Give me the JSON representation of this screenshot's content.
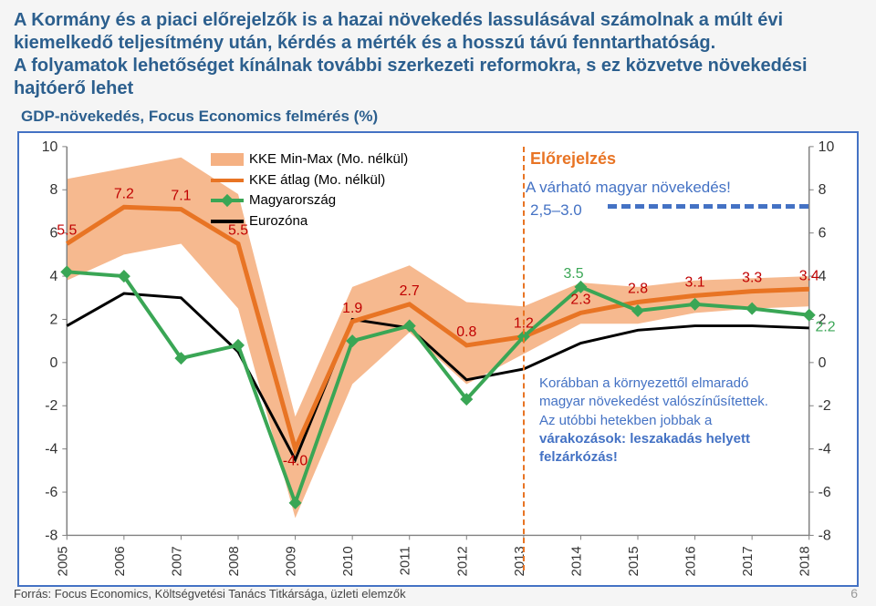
{
  "title_line1": "A Kormány és a piaci előrejelzők is a hazai növekedés lassulásával számolnak a múlt évi kiemelkedő teljesítmény után, kérdés a mérték és a hosszú távú fenntarthatóság.",
  "title_line2": "A folyamatok lehetőséget kínálnak további szerkezeti reformokra, s ez közvetve növekedési hajtóerő lehet",
  "subtitle": "GDP-növekedés, Focus Economics felmérés (%)",
  "footer": "Forrás: Focus Economics, Költségvetési Tanács Titkársága, üzleti elemzők",
  "page_num": "6",
  "forecast_label": "Előrejelzés",
  "note_expected": "A várható magyar növekedés!",
  "note_range": "2,5–3.0",
  "note_box_a": "Korábban a környezettől elmaradó magyar növekedést valószínűsítettek. Az utóbbi hetekben jobbak a ",
  "note_box_b": "várakozások: leszakadás helyett felzárkózás!",
  "legend": {
    "l1": "KKE Min-Max (Mo. nélkül)",
    "l2": "KKE átlag (Mo. nélkül)",
    "l3": "Magyarország",
    "l4": "Eurozóna"
  },
  "chart": {
    "years": [
      "2005",
      "2006",
      "2007",
      "2008",
      "2009",
      "2010",
      "2011",
      "2012",
      "2013",
      "2014",
      "2015",
      "2016",
      "2017",
      "2018"
    ],
    "ylim": [
      -8,
      10
    ],
    "ytick_step": 2,
    "band_max": [
      8.5,
      9.0,
      9.5,
      7.8,
      -2.5,
      3.5,
      4.5,
      2.8,
      2.6,
      3.7,
      3.5,
      3.8,
      3.9,
      4.0
    ],
    "band_min": [
      3.8,
      5.0,
      5.5,
      2.5,
      -7.2,
      -1.0,
      1.4,
      -1.0,
      0.4,
      1.8,
      1.8,
      2.3,
      2.5,
      2.6
    ],
    "kke_avg": [
      5.5,
      7.2,
      7.1,
      5.5,
      -4.0,
      1.9,
      2.7,
      0.8,
      1.2,
      2.3,
      2.8,
      3.1,
      3.3,
      3.4
    ],
    "hungary": [
      4.2,
      4.0,
      0.2,
      0.8,
      -6.5,
      1.0,
      1.7,
      -1.7,
      1.2,
      3.5,
      2.4,
      2.7,
      2.5,
      2.2
    ],
    "eurozone": [
      1.7,
      3.2,
      3.0,
      0.5,
      -4.5,
      2.0,
      1.6,
      -0.8,
      -0.3,
      0.9,
      1.5,
      1.7,
      1.7,
      1.6
    ],
    "labels_kke": {
      "2005": "5.5",
      "2006": "7.2",
      "2007": "7.1",
      "2008": "5.5",
      "2009": "-4.0",
      "2010": "1.9",
      "2011": "2.7",
      "2012": "0.8",
      "2013": "1.2",
      "2014": "2.3",
      "2015": "2.8",
      "2016": "3.1",
      "2017": "3.3",
      "2018": "3.4"
    },
    "label_hu_2014": "3.5",
    "label_hu_2018": "2.2",
    "colors": {
      "band": "#f5b183",
      "kke": "#e87424",
      "hungary": "#3aa655",
      "eurozone": "#000000",
      "axis": "#808080",
      "red_label": "#c00000"
    }
  }
}
